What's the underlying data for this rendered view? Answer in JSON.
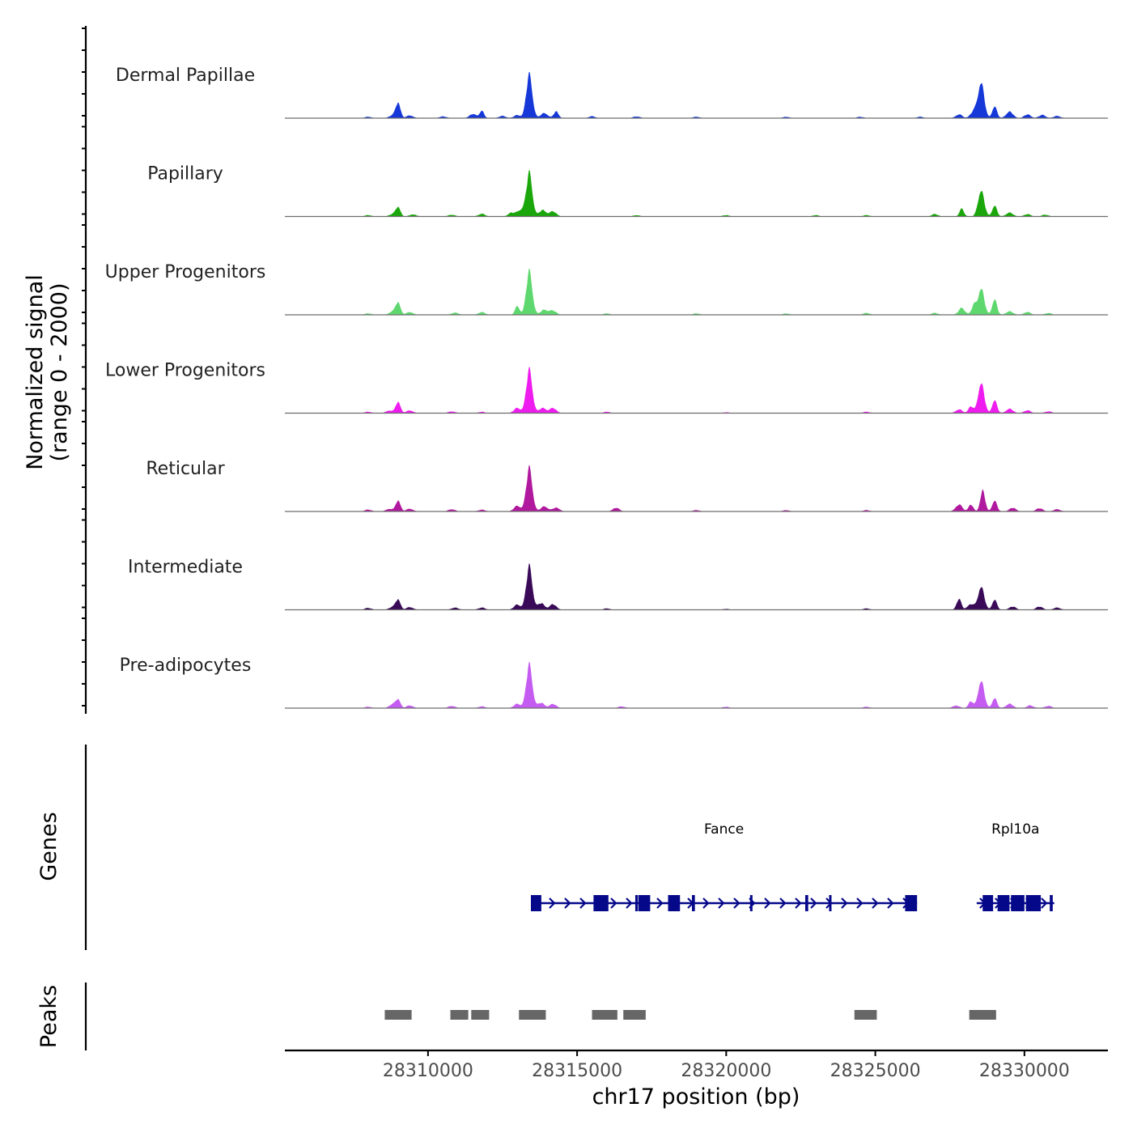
{
  "chart_data": {
    "type": "area",
    "title": "",
    "signal_axis_label_line1": "Normalized signal",
    "signal_axis_label_line2": "(range 0 - 2000)",
    "genes_axis_label": "Genes",
    "peaks_axis_label": "Peaks",
    "xlabel": "chr17 position (bp)",
    "xlim": [
      28305200,
      28332800
    ],
    "x_ticks": [
      28310000,
      28315000,
      28320000,
      28325000,
      28330000
    ],
    "x_tick_labels": [
      "28310000",
      "28315000",
      "28320000",
      "28325000",
      "28330000"
    ],
    "ylim": [
      0,
      2000
    ],
    "signal_end": 28331600,
    "series": [
      {
        "name": "Dermal Papillae",
        "color": "#1638D8",
        "peaks": [
          [
            28308000,
            0.03
          ],
          [
            28308800,
            0.06
          ],
          [
            28309000,
            0.36
          ],
          [
            28309400,
            0.06
          ],
          [
            28310500,
            0.04
          ],
          [
            28311500,
            0.09
          ],
          [
            28311800,
            0.16
          ],
          [
            28312500,
            0.05
          ],
          [
            28313000,
            0.07
          ],
          [
            28313400,
            1.0
          ],
          [
            28313900,
            0.12
          ],
          [
            28314300,
            0.16
          ],
          [
            28315500,
            0.04
          ],
          [
            28317000,
            0.04
          ],
          [
            28319000,
            0.03
          ],
          [
            28322000,
            0.03
          ],
          [
            28324500,
            0.03
          ],
          [
            28326500,
            0.03
          ],
          [
            28327800,
            0.08
          ],
          [
            28328300,
            0.15
          ],
          [
            28328550,
            0.84
          ],
          [
            28329000,
            0.28
          ],
          [
            28329500,
            0.15
          ],
          [
            28330100,
            0.08
          ],
          [
            28330600,
            0.07
          ],
          [
            28331100,
            0.05
          ]
        ]
      },
      {
        "name": "Papillary",
        "color": "#1BA70B",
        "peaks": [
          [
            28308000,
            0.03
          ],
          [
            28308800,
            0.05
          ],
          [
            28309000,
            0.22
          ],
          [
            28309500,
            0.05
          ],
          [
            28310800,
            0.04
          ],
          [
            28311800,
            0.06
          ],
          [
            28312800,
            0.08
          ],
          [
            28313100,
            0.15
          ],
          [
            28313400,
            1.0
          ],
          [
            28313850,
            0.15
          ],
          [
            28314200,
            0.11
          ],
          [
            28317000,
            0.03
          ],
          [
            28320000,
            0.03
          ],
          [
            28323000,
            0.03
          ],
          [
            28324700,
            0.03
          ],
          [
            28327000,
            0.05
          ],
          [
            28327900,
            0.16
          ],
          [
            28328550,
            0.62
          ],
          [
            28329000,
            0.26
          ],
          [
            28329500,
            0.09
          ],
          [
            28330100,
            0.05
          ],
          [
            28330700,
            0.04
          ]
        ]
      },
      {
        "name": "Upper Progenitors",
        "color": "#5ED86E",
        "peaks": [
          [
            28308000,
            0.03
          ],
          [
            28308800,
            0.07
          ],
          [
            28309000,
            0.29
          ],
          [
            28309400,
            0.06
          ],
          [
            28310900,
            0.05
          ],
          [
            28311800,
            0.06
          ],
          [
            28313000,
            0.2
          ],
          [
            28313400,
            1.0
          ],
          [
            28313900,
            0.12
          ],
          [
            28314200,
            0.09
          ],
          [
            28316000,
            0.03
          ],
          [
            28319000,
            0.03
          ],
          [
            28322000,
            0.03
          ],
          [
            28324700,
            0.04
          ],
          [
            28327000,
            0.04
          ],
          [
            28327900,
            0.14
          ],
          [
            28328300,
            0.2
          ],
          [
            28328550,
            0.63
          ],
          [
            28329000,
            0.37
          ],
          [
            28329500,
            0.08
          ],
          [
            28330100,
            0.06
          ],
          [
            28330800,
            0.04
          ]
        ]
      },
      {
        "name": "Lower Progenitors",
        "color": "#EE1CEE",
        "peaks": [
          [
            28308000,
            0.03
          ],
          [
            28308700,
            0.06
          ],
          [
            28309000,
            0.27
          ],
          [
            28309400,
            0.06
          ],
          [
            28310800,
            0.04
          ],
          [
            28311800,
            0.03
          ],
          [
            28313000,
            0.12
          ],
          [
            28313400,
            1.0
          ],
          [
            28313850,
            0.12
          ],
          [
            28314200,
            0.11
          ],
          [
            28316000,
            0.03
          ],
          [
            28320000,
            0.02
          ],
          [
            28324700,
            0.03
          ],
          [
            28327800,
            0.08
          ],
          [
            28328200,
            0.16
          ],
          [
            28328550,
            0.72
          ],
          [
            28329000,
            0.31
          ],
          [
            28329500,
            0.1
          ],
          [
            28330100,
            0.06
          ],
          [
            28330800,
            0.04
          ]
        ]
      },
      {
        "name": "Reticular",
        "color": "#B0189E",
        "peaks": [
          [
            28308000,
            0.04
          ],
          [
            28308700,
            0.06
          ],
          [
            28309000,
            0.26
          ],
          [
            28309400,
            0.06
          ],
          [
            28310800,
            0.05
          ],
          [
            28311800,
            0.04
          ],
          [
            28313000,
            0.13
          ],
          [
            28313400,
            1.0
          ],
          [
            28313900,
            0.12
          ],
          [
            28314300,
            0.09
          ],
          [
            28316300,
            0.08
          ],
          [
            28319000,
            0.03
          ],
          [
            28322000,
            0.03
          ],
          [
            28324700,
            0.03
          ],
          [
            28327800,
            0.15
          ],
          [
            28328200,
            0.16
          ],
          [
            28328600,
            0.5
          ],
          [
            28329000,
            0.26
          ],
          [
            28329600,
            0.08
          ],
          [
            28330500,
            0.07
          ],
          [
            28331100,
            0.05
          ]
        ]
      },
      {
        "name": "Intermediate",
        "color": "#3A0A58",
        "peaks": [
          [
            28308000,
            0.04
          ],
          [
            28308800,
            0.06
          ],
          [
            28309000,
            0.24
          ],
          [
            28309400,
            0.06
          ],
          [
            28310900,
            0.05
          ],
          [
            28311800,
            0.05
          ],
          [
            28313000,
            0.12
          ],
          [
            28313400,
            1.0
          ],
          [
            28313800,
            0.15
          ],
          [
            28314200,
            0.12
          ],
          [
            28316000,
            0.03
          ],
          [
            28320000,
            0.02
          ],
          [
            28324700,
            0.03
          ],
          [
            28327800,
            0.24
          ],
          [
            28328200,
            0.13
          ],
          [
            28328550,
            0.55
          ],
          [
            28329000,
            0.24
          ],
          [
            28329600,
            0.07
          ],
          [
            28330500,
            0.07
          ],
          [
            28331100,
            0.05
          ]
        ]
      },
      {
        "name": "Pre-adipocytes",
        "color": "#C55CF2",
        "peaks": [
          [
            28308000,
            0.03
          ],
          [
            28308800,
            0.08
          ],
          [
            28309000,
            0.2
          ],
          [
            28309400,
            0.06
          ],
          [
            28310800,
            0.05
          ],
          [
            28311800,
            0.04
          ],
          [
            28313000,
            0.1
          ],
          [
            28313400,
            1.0
          ],
          [
            28313800,
            0.12
          ],
          [
            28314200,
            0.09
          ],
          [
            28316500,
            0.04
          ],
          [
            28320000,
            0.03
          ],
          [
            28324700,
            0.03
          ],
          [
            28327700,
            0.06
          ],
          [
            28328200,
            0.16
          ],
          [
            28328550,
            0.65
          ],
          [
            28329000,
            0.24
          ],
          [
            28329500,
            0.1
          ],
          [
            28330200,
            0.06
          ],
          [
            28330800,
            0.05
          ]
        ]
      }
    ],
    "genes": [
      {
        "name": "Fance",
        "start": 28313450,
        "end": 28326400,
        "strand": "+",
        "exons": [
          [
            28313450,
            28313800
          ],
          [
            28315550,
            28316050
          ],
          [
            28316950,
            28317000
          ],
          [
            28317050,
            28317450
          ],
          [
            28318050,
            28318450
          ],
          [
            28318850,
            28318950
          ],
          [
            28320800,
            28320850
          ],
          [
            28322650,
            28322750
          ],
          [
            28323450,
            28323500
          ],
          [
            28326000,
            28326400
          ]
        ]
      },
      {
        "name": "Rpl10a",
        "start": 28328400,
        "end": 28331000,
        "strand": "+",
        "exons": [
          [
            28328600,
            28328950
          ],
          [
            28329100,
            28329500
          ],
          [
            28329550,
            28330000
          ],
          [
            28330050,
            28330550
          ],
          [
            28330850,
            28330950
          ]
        ]
      }
    ],
    "peaks": [
      [
        28308550,
        28309450
      ],
      [
        28310750,
        28311350
      ],
      [
        28311450,
        28312050
      ],
      [
        28313050,
        28313950
      ],
      [
        28315500,
        28316350
      ],
      [
        28316550,
        28317300
      ],
      [
        28324300,
        28325050
      ],
      [
        28328150,
        28329050
      ]
    ]
  }
}
